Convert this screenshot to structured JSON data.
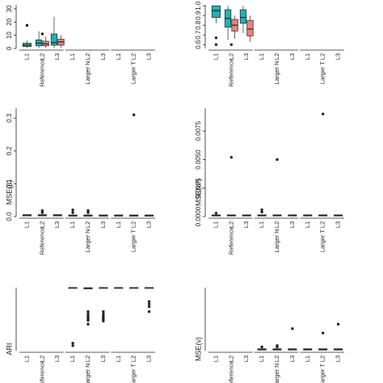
{
  "colors": {
    "teal": "#20B2B6",
    "salmon": "#E8837A",
    "point": "#222222",
    "line": "#222222"
  },
  "panel_labels": {
    "reference": "Reference",
    "larger_n": "Larger N",
    "larger_t": "Larger T",
    "levels": [
      "L1",
      "L2",
      "L3"
    ]
  },
  "chart_data": [
    {
      "id": "ari",
      "type": "box",
      "title": "ARI",
      "orientation": "rotated-90-ccw",
      "groups": [
        "Reference",
        "Larger N",
        "Larger T"
      ],
      "levels": [
        "L1",
        "L2",
        "L3"
      ],
      "ylim": [
        0,
        1
      ],
      "yticks": [],
      "boxes": [
        {
          "group": "Larger N",
          "level": "L1",
          "median": 1.0,
          "q1": 1.0,
          "q3": 1.0
        },
        {
          "group": "Larger N",
          "level": "L2",
          "median": 0.99,
          "q1": 0.98,
          "q3": 1.0
        },
        {
          "group": "Larger N",
          "level": "L3",
          "median": 1.0,
          "q1": 1.0,
          "q3": 1.0
        },
        {
          "group": "Larger T",
          "level": "L1",
          "median": 1.0,
          "q1": 1.0,
          "q3": 1.0
        },
        {
          "group": "Larger T",
          "level": "L2",
          "median": 1.0,
          "q1": 1.0,
          "q3": 1.0
        },
        {
          "group": "Larger T",
          "level": "L3",
          "median": 1.0,
          "q1": 1.0,
          "q3": 1.0
        }
      ],
      "outliers": [
        {
          "group": "Larger N",
          "level": "L1",
          "values": [
            0.12,
            0.08
          ]
        },
        {
          "group": "Larger N",
          "level": "L2",
          "values": [
            0.62,
            0.58,
            0.55,
            0.52,
            0.5,
            0.48,
            0.42
          ]
        },
        {
          "group": "Larger N",
          "level": "L3",
          "values": [
            0.62,
            0.58,
            0.55,
            0.52,
            0.5,
            0.47
          ]
        },
        {
          "group": "Larger T",
          "level": "L3",
          "values": [
            0.78,
            0.74,
            0.7,
            0.62
          ]
        }
      ]
    },
    {
      "id": "mse_beta",
      "type": "box",
      "title": "MSE(β)",
      "orientation": "rotated-90-ccw",
      "groups": [
        "Reference",
        "Larger N",
        "Larger T"
      ],
      "levels": [
        "L1",
        "L2",
        "L3"
      ],
      "ylim": [
        0,
        0.33
      ],
      "yticks": [
        0.0,
        0.1,
        0.2,
        0.3
      ],
      "ytick_labels": [
        "0.0",
        "0.1",
        "0.2",
        "0.3"
      ],
      "boxes": [
        {
          "group": "Reference",
          "level": "L1",
          "median": 0.004,
          "q1": 0.002,
          "q3": 0.006
        },
        {
          "group": "Reference",
          "level": "L2",
          "median": 0.004,
          "q1": 0.002,
          "q3": 0.006
        },
        {
          "group": "Reference",
          "level": "L3",
          "median": 0.004,
          "q1": 0.002,
          "q3": 0.006
        },
        {
          "group": "Larger N",
          "level": "L1",
          "median": 0.003,
          "q1": 0.001,
          "q3": 0.005
        },
        {
          "group": "Larger N",
          "level": "L2",
          "median": 0.003,
          "q1": 0.001,
          "q3": 0.005
        },
        {
          "group": "Larger N",
          "level": "L3",
          "median": 0.003,
          "q1": 0.001,
          "q3": 0.005
        },
        {
          "group": "Larger T",
          "level": "L1",
          "median": 0.003,
          "q1": 0.001,
          "q3": 0.005
        },
        {
          "group": "Larger T",
          "level": "L2",
          "median": 0.003,
          "q1": 0.001,
          "q3": 0.005
        },
        {
          "group": "Larger T",
          "level": "L3",
          "median": 0.003,
          "q1": 0.001,
          "q3": 0.005
        }
      ],
      "outliers": [
        {
          "group": "Reference",
          "level": "L2",
          "values": [
            0.012,
            0.018
          ]
        },
        {
          "group": "Larger N",
          "level": "L1",
          "values": [
            0.012,
            0.02
          ]
        },
        {
          "group": "Larger N",
          "level": "L2",
          "values": [
            0.012,
            0.018
          ]
        },
        {
          "group": "Larger T",
          "level": "L2",
          "values": [
            0.31
          ]
        }
      ]
    },
    {
      "id": "ari_violin",
      "type": "box",
      "title": "",
      "orientation": "rotated-90-ccw",
      "groups": [
        "Reference",
        "Larger N",
        "Larger T"
      ],
      "levels": [
        "L1",
        "L2",
        "L3"
      ],
      "ylim": [
        0,
        33
      ],
      "yticks": [
        0,
        10,
        20,
        30
      ],
      "ytick_labels": [
        "0",
        "10",
        "20",
        "30"
      ],
      "boxes": [
        {
          "group": "Reference",
          "level": "L1",
          "median": 2.5,
          "q1": 1.5,
          "q3": 4.0,
          "whisker_low": 0.5,
          "whisker_high": 6.0,
          "color": "teal"
        },
        {
          "group": "Reference",
          "level": "L2",
          "median": 4.0,
          "q1": 2.0,
          "q3": 6.5,
          "whisker_low": 0.3,
          "whisker_high": 13.0,
          "color": "teal"
        },
        {
          "group": "Reference",
          "level": "L2",
          "median": 3.5,
          "q1": 2.0,
          "q3": 5.5,
          "whisker_low": 0.5,
          "whisker_high": 9.0,
          "color": "salmon"
        },
        {
          "group": "Reference",
          "level": "L3",
          "median": 4.5,
          "q1": 2.5,
          "q3": 11.0,
          "whisker_low": 0.5,
          "whisker_high": 24.0,
          "color": "teal"
        },
        {
          "group": "Reference",
          "level": "L3",
          "median": 5.0,
          "q1": 2.5,
          "q3": 7.0,
          "whisker_low": 0.5,
          "whisker_high": 10.0,
          "color": "salmon"
        }
      ],
      "outliers": [
        {
          "group": "Reference",
          "level": "L1",
          "values": [
            17.5
          ]
        },
        {
          "group": "Reference",
          "level": "L2",
          "values": [
            11.0
          ]
        }
      ]
    },
    {
      "id": "mse_v",
      "type": "box",
      "title": "MSE(ν)",
      "orientation": "rotated-90-ccw",
      "groups": [
        "Reference",
        "Larger N",
        "Larger T"
      ],
      "levels": [
        "L1",
        "L2",
        "L3"
      ],
      "ylim": [
        0,
        1
      ],
      "yticks": [],
      "boxes": [
        {
          "group": "Larger N",
          "level": "L1",
          "median": 0.02,
          "q1": 0.01,
          "q3": 0.03
        },
        {
          "group": "Larger N",
          "level": "L2",
          "median": 0.02,
          "q1": 0.01,
          "q3": 0.03
        },
        {
          "group": "Larger N",
          "level": "L3",
          "median": 0.02,
          "q1": 0.01,
          "q3": 0.03
        },
        {
          "group": "Larger T",
          "level": "L1",
          "median": 0.02,
          "q1": 0.01,
          "q3": 0.03
        },
        {
          "group": "Larger T",
          "level": "L2",
          "median": 0.02,
          "q1": 0.01,
          "q3": 0.03
        },
        {
          "group": "Larger T",
          "level": "L3",
          "median": 0.02,
          "q1": 0.01,
          "q3": 0.03
        }
      ],
      "outliers": [
        {
          "group": "Larger N",
          "level": "L1",
          "values": [
            0.06
          ]
        },
        {
          "group": "Larger N",
          "level": "L2",
          "values": [
            0.06,
            0.08
          ]
        },
        {
          "group": "Larger N",
          "level": "L3",
          "values": [
            0.35
          ]
        },
        {
          "group": "Larger T",
          "level": "L2",
          "values": [
            0.28
          ]
        },
        {
          "group": "Larger T",
          "level": "L3",
          "values": [
            0.42
          ]
        }
      ]
    },
    {
      "id": "mse_sigma2",
      "type": "box",
      "title": "MSE(σ²)",
      "orientation": "rotated-90-ccw",
      "groups": [
        "Reference",
        "Larger N",
        "Larger T"
      ],
      "levels": [
        "L1",
        "L2",
        "L3"
      ],
      "ylim": [
        0,
        0.0095
      ],
      "yticks": [
        0.0,
        0.0025,
        0.005,
        0.0075
      ],
      "ytick_labels": [
        "0.0000",
        "0.0025",
        "0.0050",
        "0.0075"
      ],
      "boxes": [
        {
          "group": "Reference",
          "level": "L1",
          "median": 0.0001,
          "q1": 5e-05,
          "q3": 0.00015
        },
        {
          "group": "Reference",
          "level": "L2",
          "median": 0.0001,
          "q1": 5e-05,
          "q3": 0.00015
        },
        {
          "group": "Reference",
          "level": "L3",
          "median": 0.0001,
          "q1": 5e-05,
          "q3": 0.00015
        },
        {
          "group": "Larger N",
          "level": "L1",
          "median": 0.0001,
          "q1": 5e-05,
          "q3": 0.00015
        },
        {
          "group": "Larger N",
          "level": "L2",
          "median": 0.0001,
          "q1": 5e-05,
          "q3": 0.00015
        },
        {
          "group": "Larger N",
          "level": "L3",
          "median": 0.0001,
          "q1": 5e-05,
          "q3": 0.00015
        },
        {
          "group": "Larger T",
          "level": "L1",
          "median": 0.0001,
          "q1": 5e-05,
          "q3": 0.00015
        },
        {
          "group": "Larger T",
          "level": "L2",
          "median": 0.0001,
          "q1": 5e-05,
          "q3": 0.00015
        },
        {
          "group": "Larger T",
          "level": "L3",
          "median": 0.0001,
          "q1": 5e-05,
          "q3": 0.00015
        }
      ],
      "outliers": [
        {
          "group": "Reference",
          "level": "L1",
          "values": [
            0.0003
          ]
        },
        {
          "group": "Reference",
          "level": "L2",
          "values": [
            0.0052
          ]
        },
        {
          "group": "Larger N",
          "level": "L1",
          "values": [
            0.0004,
            0.0006
          ]
        },
        {
          "group": "Larger N",
          "level": "L2",
          "values": [
            0.005
          ]
        },
        {
          "group": "Larger T",
          "level": "L2",
          "values": [
            0.009
          ]
        }
      ]
    },
    {
      "id": "rand_index",
      "type": "box",
      "title": "",
      "orientation": "rotated-90-ccw",
      "groups": [
        "Reference",
        "Larger N",
        "Larger T"
      ],
      "levels": [
        "L1",
        "L2",
        "L3"
      ],
      "ylim": [
        0.56,
        1.01
      ],
      "yticks": [
        0.6,
        0.7,
        0.8,
        0.9,
        1.0
      ],
      "ytick_labels": [
        "0.6",
        "0.7",
        "0.8",
        "0.9",
        "1.0"
      ],
      "boxes": [
        {
          "group": "Reference",
          "level": "L1",
          "median": 0.95,
          "q1": 0.88,
          "q3": 1.0,
          "whisker_low": 0.82,
          "whisker_high": 1.0,
          "color": "teal"
        },
        {
          "group": "Reference",
          "level": "L2",
          "median": 0.87,
          "q1": 0.78,
          "q3": 0.96,
          "whisker_low": 0.65,
          "whisker_high": 1.0,
          "color": "teal"
        },
        {
          "group": "Reference",
          "level": "L2",
          "median": 0.8,
          "q1": 0.74,
          "q3": 0.86,
          "whisker_low": 0.66,
          "whisker_high": 0.9,
          "color": "salmon"
        },
        {
          "group": "Reference",
          "level": "L3",
          "median": 0.88,
          "q1": 0.82,
          "q3": 0.96,
          "whisker_low": 0.72,
          "whisker_high": 1.0,
          "color": "teal"
        },
        {
          "group": "Reference",
          "level": "L3",
          "median": 0.76,
          "q1": 0.69,
          "q3": 0.85,
          "whisker_low": 0.63,
          "whisker_high": 0.9,
          "color": "salmon"
        }
      ],
      "outliers": [
        {
          "group": "Reference",
          "level": "L1",
          "values": [
            0.6,
            0.67
          ]
        },
        {
          "group": "Reference",
          "level": "L2",
          "values": [
            0.6
          ]
        }
      ]
    }
  ]
}
